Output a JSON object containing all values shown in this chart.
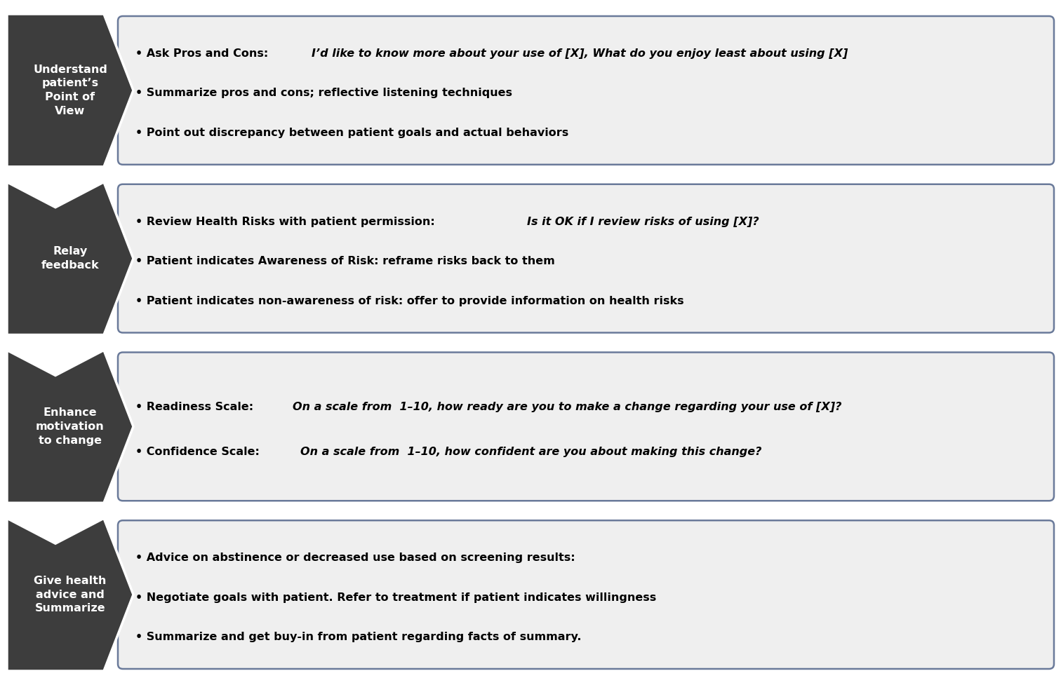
{
  "background_color": "#ffffff",
  "arrow_color": "#3d3d3d",
  "box_bg_color": "#efefef",
  "box_border_color": "#6a7a9a",
  "steps": [
    {
      "label": "Understand\npatient’s\nPoint of\nView",
      "bullets": [
        [
          {
            "text": "• Ask Pros and Cons: ",
            "italic": false,
            "bold": true
          },
          {
            "text": "I’d like to know more about your use of [X], What do you enjoy least about using [X]",
            "italic": true,
            "bold": false
          }
        ],
        [
          {
            "text": "• Summarize pros and cons; reflective listening techniques",
            "italic": false,
            "bold": true
          }
        ],
        [
          {
            "text": "• Point out discrepancy between patient goals and actual behaviors",
            "italic": false,
            "bold": true
          }
        ]
      ]
    },
    {
      "label": "Relay\nfeedback",
      "bullets": [
        [
          {
            "text": "• Review Health Risks with patient permission: ",
            "italic": false,
            "bold": true
          },
          {
            "text": "Is it OK if I review risks of using [X]?",
            "italic": true,
            "bold": false
          }
        ],
        [
          {
            "text": "• Patient indicates Awareness of Risk: reframe risks back to them",
            "italic": false,
            "bold": true
          }
        ],
        [
          {
            "text": "• Patient indicates non-awareness of risk: offer to provide information on health risks",
            "italic": false,
            "bold": true
          }
        ]
      ]
    },
    {
      "label": "Enhance\nmotivation\nto change",
      "bullets": [
        [
          {
            "text": "• Readiness Scale: ",
            "italic": false,
            "bold": true
          },
          {
            "text": "On a scale from  1–10, how ready are you to make a change regarding your use of [X]?",
            "italic": true,
            "bold": false
          }
        ],
        [
          {
            "text": "• Confidence Scale: ",
            "italic": false,
            "bold": true
          },
          {
            "text": "On a scale from  1–10, how confident are you about making this change?",
            "italic": true,
            "bold": false
          }
        ]
      ]
    },
    {
      "label": "Give health\nadvice and\nSummarize",
      "bullets": [
        [
          {
            "text": "• Advice on abstinence or decreased use based on screening results:",
            "italic": false,
            "bold": true
          }
        ],
        [
          {
            "text": "• Negotiate goals with patient. Refer to treatment if patient indicates willingness",
            "italic": false,
            "bold": true
          }
        ],
        [
          {
            "text": "• Summarize and get buy-in from patient regarding facts of summary.",
            "italic": false,
            "bold": true
          }
        ]
      ]
    }
  ]
}
